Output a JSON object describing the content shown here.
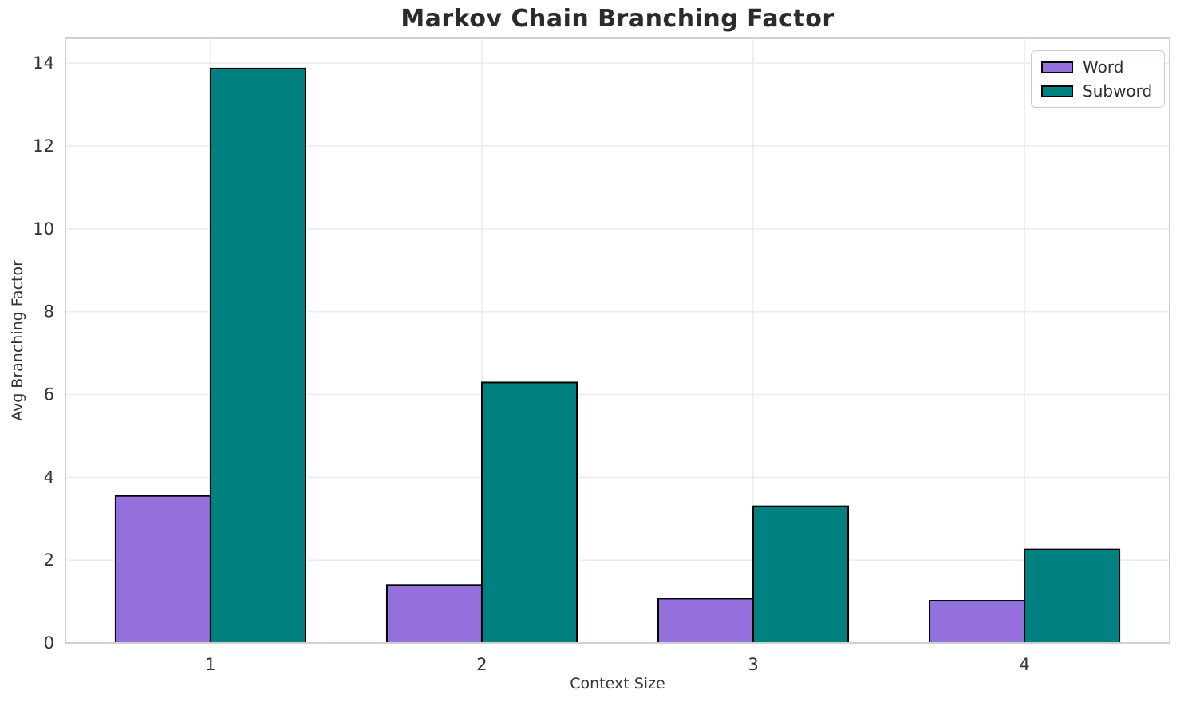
{
  "chart_data": {
    "type": "bar",
    "title": "Markov Chain Branching Factor",
    "xlabel": "Context Size",
    "ylabel": "Avg Branching Factor",
    "categories": [
      "1",
      "2",
      "3",
      "4"
    ],
    "series": [
      {
        "name": "Word",
        "color": "#9370DB",
        "values": [
          3.55,
          1.4,
          1.07,
          1.02
        ]
      },
      {
        "name": "Subword",
        "color": "#008080",
        "values": [
          13.87,
          6.29,
          3.3,
          2.26
        ]
      }
    ],
    "bar_width": 0.35,
    "bar_edge_color": "#000000",
    "ylim": [
      0,
      14.6
    ],
    "xlim": [
      0.465,
      4.535
    ],
    "yticks": [
      0,
      2,
      4,
      6,
      8,
      10,
      12,
      14
    ],
    "grid": true,
    "legend_position": "upper right"
  },
  "legend": {
    "items": [
      {
        "label": "Word",
        "color": "#9370DB"
      },
      {
        "label": "Subword",
        "color": "#008080"
      }
    ]
  },
  "colors": {
    "grid": "#ececec",
    "spine": "#d0d0d0",
    "tick_text": "#333333",
    "title_text": "#2b2b2b"
  }
}
